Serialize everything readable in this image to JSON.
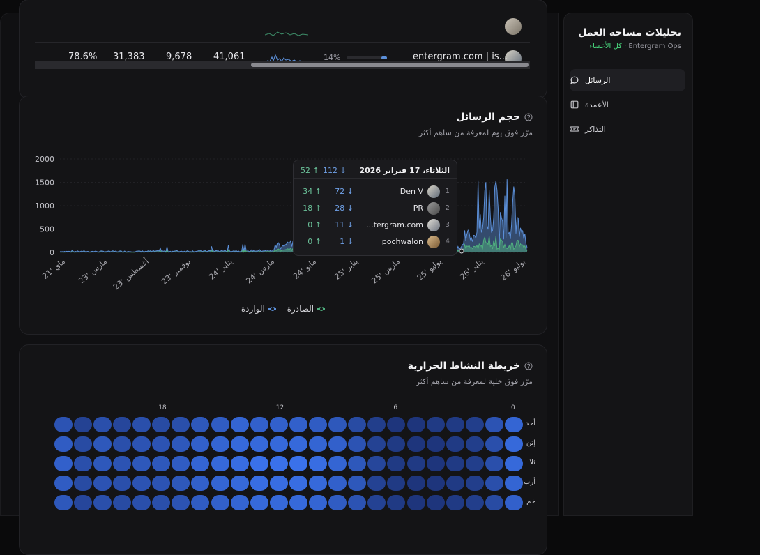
{
  "sidebar": {
    "title": "تحليلات مساحة العمل",
    "workspace": "Entergram Ops",
    "members_link": "كل الأعضاء",
    "items": [
      {
        "label": "الرسائل",
        "icon": "message-icon",
        "active": true
      },
      {
        "label": "الأعمدة",
        "icon": "columns-icon",
        "active": false
      },
      {
        "label": "التذاكر",
        "icon": "ticket-icon",
        "active": false
      }
    ]
  },
  "table": {
    "rows": [
      {
        "name": "entergram.com | is...",
        "share_pct": "14%",
        "share_value": 0.14,
        "total": "41,061",
        "incoming": "9,678",
        "outgoing": "31,383",
        "rate": "78.6%"
      }
    ]
  },
  "volume": {
    "title": "حجم الرسائل",
    "subtitle": "مرّر فوق يوم لمعرفة من ساهم أكثر",
    "legend_in": "الواردة",
    "legend_out": "الصادرة",
    "in_color": "#5b8fd8",
    "out_color": "#4fae7e",
    "tooltip": {
      "date": "الثلاثاء، 17 فبراير 2026",
      "total_in": "112 ↓",
      "total_out": "52 ↑",
      "rows": [
        {
          "rank": "1",
          "name": "Den V",
          "in": "72 ↓",
          "out": "34 ↑"
        },
        {
          "rank": "2",
          "name": "PR",
          "in": "28 ↓",
          "out": "18 ↑"
        },
        {
          "rank": "3",
          "name": "...tergram.com",
          "in": "11 ↓",
          "out": "0 ↑"
        },
        {
          "rank": "4",
          "name": "pochwalon",
          "in": "1 ↓",
          "out": "0 ↑"
        }
      ]
    }
  },
  "chart_data": {
    "type": "area",
    "y_ticks": [
      "0",
      "500",
      "1000",
      "1500",
      "2000"
    ],
    "ylim": [
      0,
      2000
    ],
    "x_tick_labels": [
      "21' ماي",
      "23' مارس",
      "23' أغسطس",
      "23' نوفمبر",
      "24' يناير",
      "24' مارس",
      "24' مايو",
      "25' يناير",
      "25' مارس",
      "25' يوليو",
      "26' يناير",
      "26' يوليو"
    ],
    "series": [
      {
        "name": "الواردة",
        "color": "#5b8fd8"
      },
      {
        "name": "الصادرة",
        "color": "#4fae7e"
      }
    ]
  },
  "heatmap": {
    "title": "خريطة النشاط الحرارية",
    "subtitle": "مرّر فوق خلية لمعرفة من ساهم أكثر",
    "hour_labels": [
      {
        "hour": 0,
        "label": "0"
      },
      {
        "hour": 6,
        "label": "6"
      },
      {
        "hour": 12,
        "label": "12"
      },
      {
        "hour": 18,
        "label": "18"
      }
    ],
    "days": [
      "أحد",
      "إثن",
      "ثلا",
      "أرب",
      "خم"
    ],
    "levels": [
      [
        0.75,
        0.55,
        0.3,
        0.25,
        0.25,
        0.2,
        0.2,
        0.3,
        0.45,
        0.6,
        0.65,
        0.7,
        0.7,
        0.7,
        0.75,
        0.65,
        0.6,
        0.5,
        0.45,
        0.5,
        0.4,
        0.5,
        0.35,
        0.55
      ],
      [
        0.8,
        0.5,
        0.3,
        0.25,
        0.2,
        0.2,
        0.25,
        0.35,
        0.55,
        0.7,
        0.75,
        0.8,
        0.8,
        0.8,
        0.8,
        0.75,
        0.7,
        0.6,
        0.55,
        0.55,
        0.5,
        0.6,
        0.45,
        0.65
      ],
      [
        0.8,
        0.5,
        0.3,
        0.25,
        0.2,
        0.25,
        0.25,
        0.4,
        0.6,
        0.75,
        0.85,
        0.9,
        0.9,
        0.9,
        0.85,
        0.8,
        0.75,
        0.65,
        0.6,
        0.6,
        0.55,
        0.6,
        0.5,
        0.7
      ],
      [
        0.75,
        0.5,
        0.3,
        0.25,
        0.2,
        0.2,
        0.25,
        0.35,
        0.6,
        0.7,
        0.8,
        0.85,
        0.85,
        0.85,
        0.8,
        0.75,
        0.7,
        0.6,
        0.55,
        0.55,
        0.5,
        0.55,
        0.45,
        0.65
      ],
      [
        0.7,
        0.45,
        0.3,
        0.25,
        0.2,
        0.2,
        0.25,
        0.35,
        0.55,
        0.65,
        0.75,
        0.8,
        0.8,
        0.8,
        0.75,
        0.7,
        0.65,
        0.55,
        0.5,
        0.5,
        0.45,
        0.5,
        0.4,
        0.6
      ]
    ]
  }
}
